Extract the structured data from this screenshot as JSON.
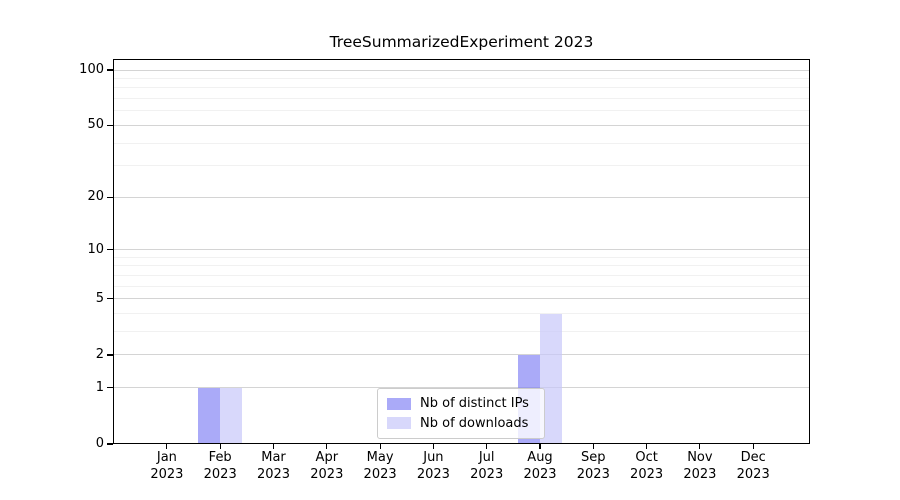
{
  "title": "TreeSummarizedExperiment 2023",
  "chart_data": {
    "type": "bar",
    "title": "TreeSummarizedExperiment 2023",
    "categories": [
      "Jan 2023",
      "Feb 2023",
      "Mar 2023",
      "Apr 2023",
      "May 2023",
      "Jun 2023",
      "Jul 2023",
      "Aug 2023",
      "Sep 2023",
      "Oct 2023",
      "Nov 2023",
      "Dec 2023"
    ],
    "series": [
      {
        "name": "Nb of distinct IPs",
        "color": "rgba(124,124,245,0.65)",
        "values": [
          0,
          1,
          0,
          0,
          0,
          0,
          0,
          2,
          0,
          0,
          0,
          0
        ]
      },
      {
        "name": "Nb of downloads",
        "color": "rgba(199,199,250,0.7)",
        "values": [
          0,
          1,
          0,
          0,
          0,
          0,
          0,
          4,
          0,
          0,
          0,
          0
        ]
      }
    ],
    "xlabel": "",
    "ylabel": "",
    "yscale": "log1p",
    "ylim": [
      0,
      100
    ],
    "yticks_major": [
      100,
      50,
      20,
      10,
      5,
      2,
      1,
      0
    ],
    "yticks_minor": [
      3,
      4,
      6,
      7,
      8,
      9,
      30,
      40,
      60,
      70,
      80,
      90
    ],
    "grid": "horizontal",
    "legend_position": "inside-bottom-center"
  },
  "legend": {
    "items": [
      "Nb of distinct IPs",
      "Nb of downloads"
    ]
  },
  "colors": {
    "background": "#ffffff",
    "axis": "#000000",
    "grid_major": "#d4d4d4",
    "grid_minor": "#f1f1f1",
    "bar_distinct_ips": "rgba(124,124,245,0.65)",
    "bar_downloads": "rgba(199,199,250,0.7)",
    "legend_border": "#cccccc"
  }
}
